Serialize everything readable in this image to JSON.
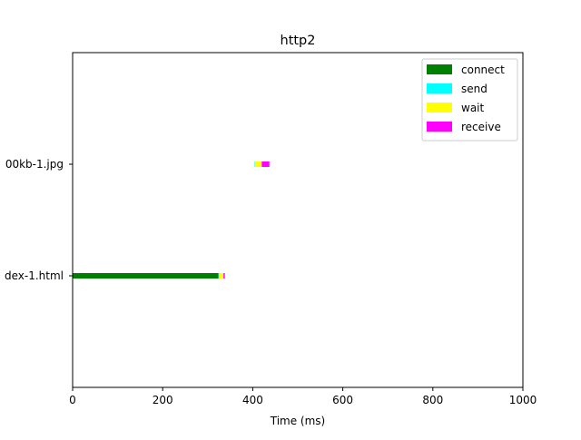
{
  "chart_data": {
    "type": "bar",
    "orientation": "horizontal-stacked",
    "title": "http2",
    "xlabel": "Time (ms)",
    "ylabel": "",
    "xlim": [
      0,
      1000
    ],
    "xticks": [
      0,
      200,
      400,
      600,
      800,
      1000
    ],
    "xtick_labels": [
      "0",
      "200",
      "400",
      "600",
      "800",
      "1000"
    ],
    "grid": false,
    "legend_position": "top-right",
    "categories": [
      "dex-1.html",
      "00kb-1.jpg"
    ],
    "phases": [
      {
        "name": "connect",
        "color": "#008000"
      },
      {
        "name": "send",
        "color": "#00ffff"
      },
      {
        "name": "wait",
        "color": "#ffff00"
      },
      {
        "name": "receive",
        "color": "#ff00ff"
      }
    ],
    "requests": [
      {
        "label": "dex-1.html",
        "segments": [
          {
            "phase": "connect",
            "start": 0,
            "end": 324
          },
          {
            "phase": "send",
            "start": 324,
            "end": 325
          },
          {
            "phase": "wait",
            "start": 325,
            "end": 335
          },
          {
            "phase": "receive",
            "start": 335,
            "end": 338
          }
        ]
      },
      {
        "label": "00kb-1.jpg",
        "segments": [
          {
            "phase": "send",
            "start": 404,
            "end": 405
          },
          {
            "phase": "wait",
            "start": 405,
            "end": 420
          },
          {
            "phase": "receive",
            "start": 420,
            "end": 437
          }
        ]
      }
    ]
  }
}
